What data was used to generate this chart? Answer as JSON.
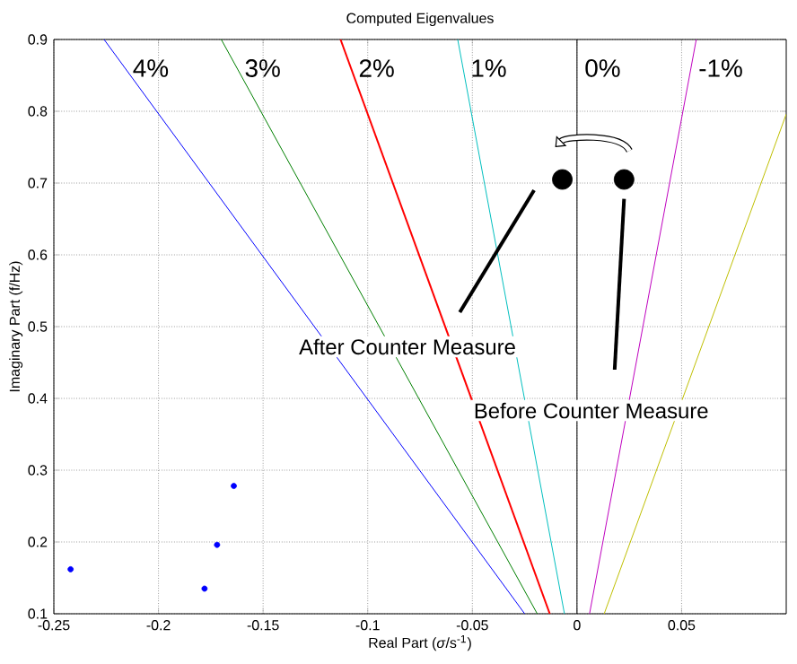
{
  "chart_data": {
    "type": "line",
    "title": "Computed Eigenvalues",
    "xlabel": "Real Part (*σ*/s$^{-1}$)",
    "ylabel": "Imaginary Part (f/Hz)",
    "xlim": [
      -0.25,
      0.1
    ],
    "ylim": [
      0.1,
      0.9
    ],
    "xticks": [
      -0.25,
      -0.2,
      -0.15,
      -0.1,
      -0.05,
      0,
      0.05
    ],
    "yticks": [
      0.1,
      0.2,
      0.3,
      0.4,
      0.5,
      0.6,
      0.7,
      0.8,
      0.9
    ],
    "grid": true,
    "series": [
      {
        "name": "4%",
        "color": "#0000ff",
        "x": [
          -0.025,
          -0.226
        ],
        "values": [
          0.1,
          0.9
        ]
      },
      {
        "name": "3%",
        "color": "#008000",
        "x": [
          -0.019,
          -0.17
        ],
        "values": [
          0.1,
          0.9
        ]
      },
      {
        "name": "2%",
        "color": "#ff0000",
        "x": [
          -0.013,
          -0.113
        ],
        "values": [
          0.1,
          0.9
        ]
      },
      {
        "name": "1%",
        "color": "#00bfbf",
        "x": [
          -0.006,
          -0.057
        ],
        "values": [
          0.1,
          0.9
        ]
      },
      {
        "name": "0%",
        "color": "#000000",
        "x": [
          0,
          0
        ],
        "values": [
          0.1,
          0.9
        ]
      },
      {
        "name": "-1%",
        "color": "#bf00bf",
        "x": [
          0.006,
          0.057
        ],
        "values": [
          0.1,
          0.9
        ]
      },
      {
        "color": "#bfbf00",
        "x": [
          0.013,
          0.1
        ],
        "values": [
          0.1,
          0.796
        ]
      },
      {
        "type": "scatter",
        "marker": "circle",
        "color": "#0000ff",
        "x": [
          -0.242,
          -0.178,
          -0.172,
          -0.164
        ],
        "values": [
          0.162,
          0.135,
          0.196,
          0.278
        ]
      },
      {
        "type": "scatter",
        "marker": "circle",
        "color": "#000000",
        "x": [
          -0.007,
          0.0225
        ],
        "values": [
          0.705,
          0.705
        ]
      }
    ],
    "annotations": [
      "After Counter Measure",
      "Before Counter Measure"
    ]
  }
}
